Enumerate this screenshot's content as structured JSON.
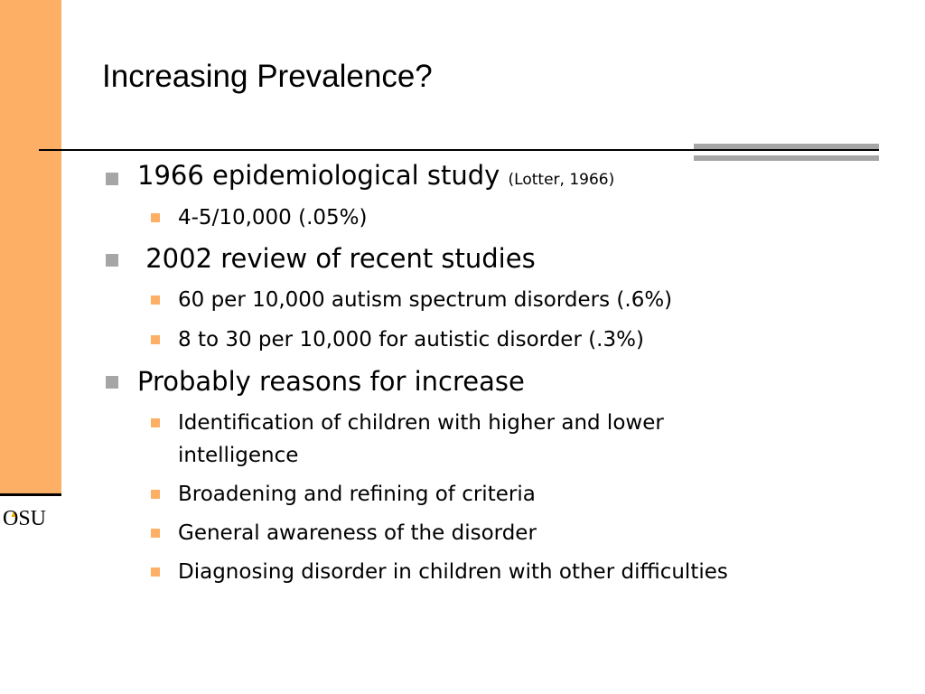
{
  "slide": {
    "title": "Increasing Prevalence?",
    "logo_text": "OSU",
    "bullets": [
      {
        "text": "1966 epidemiological study",
        "citation": "(Lotter, 1966)"
      },
      {
        "text": "4-5/10,000 (.05%)"
      },
      {
        "text": " 2002 review of recent studies"
      },
      {
        "text": "60 per 10,000 autism spectrum disorders (.6%)"
      },
      {
        "text": "8 to 30 per 10,000 for autistic disorder (.3%)"
      },
      {
        "text": "Probably reasons for increase"
      },
      {
        "line1": "Identification of children with higher and lower",
        "line2": "intelligence"
      },
      {
        "text": "Broadening and refining of criteria"
      },
      {
        "text": "General awareness of the disorder"
      },
      {
        "text": "Diagnosing disorder in children with other difficulties"
      }
    ]
  },
  "colors": {
    "accent_orange": "#fdaf65",
    "bullet_gray": "#a6a6a6",
    "logo_gold": "#f2a900"
  }
}
